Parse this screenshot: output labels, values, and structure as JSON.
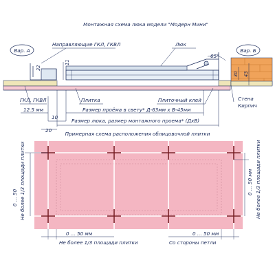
{
  "title": "Монтажная схема люка модели \"Модерн Мини\"",
  "variant_a": "Вар. А",
  "variant_b": "Вар. Б",
  "labels": {
    "guides": "Направляющие ГКЛ, ГКВЛ",
    "hatch": "Люк",
    "gkl": "ГКЛ, ГКВЛ",
    "tile": "Плитка",
    "tile_glue": "Плиточный клей",
    "wall": "Стена",
    "brick": "Кирпич",
    "opening_clear": "Размер проёма в свету* Д-63мм х В-45мм",
    "hatch_size": "Размер люка, размер монтажного проема* (ДхВ)"
  },
  "dimensions": {
    "d32": "32",
    "d11": "11",
    "angle": "65°",
    "d30": "30",
    "d43": "43",
    "d125": "12.5 мм",
    "d10": "10",
    "d20": "20"
  },
  "tile_layout": {
    "title": "Примерная схема расположения облицовочной плитки",
    "left_range": "0 ... 50",
    "left_note": "Не более 1/3 площади плитки",
    "right_range": "0 ... 50 мм",
    "right_note": "Не более 1/3 площади плитки",
    "bottom_left_range": "0 ... 50 мм",
    "bottom_left_note": "Не более 1/3 площади плитки",
    "bottom_right_range": "0 ... 50 мм",
    "bottom_right_note": "Со стороны петли"
  },
  "colors": {
    "tile_pink": "#f4b6c2",
    "grout": "#7a1c24",
    "brick": "#f0a35a",
    "line": "#1a2a5a"
  }
}
